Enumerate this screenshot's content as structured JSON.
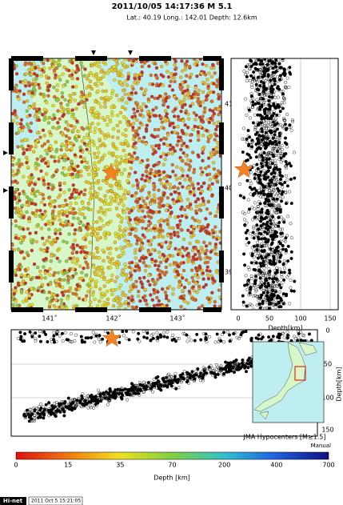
{
  "header": {
    "title": "2011/10/05 14:17:36  M 5.1",
    "info": "Lat.: 40.19   Long.: 142.01   Depth:  12.6km"
  },
  "map": {
    "lat_labels": [
      "41˚",
      "40˚",
      "39˚"
    ],
    "lon_labels": [
      "141˚",
      "142˚",
      "143˚"
    ]
  },
  "depth_section": {
    "ticks": [
      "0",
      "50",
      "100",
      "150"
    ],
    "label": "Depth[km]"
  },
  "cross_section": {
    "ticks": [
      "0",
      "50",
      "100",
      "150"
    ],
    "label": "Depth[km]"
  },
  "inset": {
    "caption": "JMA Hypocenters [M≥1.5]",
    "note": "Manual"
  },
  "colorbar": {
    "labels": [
      "0",
      "15",
      "35",
      "70",
      "200",
      "400",
      "700"
    ],
    "title": "Depth [km]"
  },
  "footer": {
    "brand": "Hi-net",
    "timestamp": "2011 Oct  5 15:21:05"
  }
}
